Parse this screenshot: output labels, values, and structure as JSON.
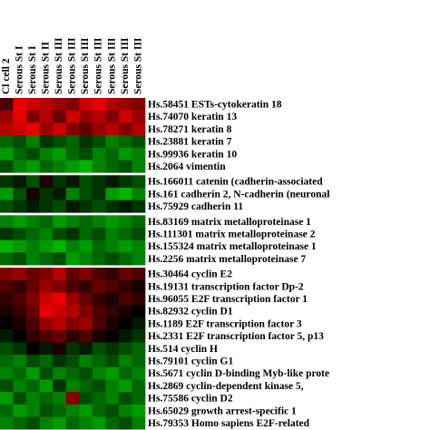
{
  "chart_data": {
    "type": "heatmap",
    "columns": [
      "Cl cell 2",
      "Serous St I",
      "Serous St I",
      "Serous St II",
      "Serous St III",
      "Serous St III",
      "Serous St III",
      "Serous St III",
      "Serous St III",
      "Serous St III",
      "Serous St III"
    ],
    "colors": {
      "positive": "#ff0000",
      "negative": "#00ff00",
      "zero": "#000000"
    },
    "zlim": [
      -1,
      1
    ],
    "row_groups": [
      {
        "rows": [
          "Hs.58451 ESTs-cytokeratin 18",
          "Hs.74070 keratin 13",
          "Hs.78271 keratin 8",
          "Hs.23881 keratin 7",
          "Hs.99936 keratin 10",
          "Hs.2064 vimentin"
        ],
        "values": [
          [
            0.3,
            0.9,
            0.8,
            0.7,
            0.6,
            0.5,
            0.8,
            0.9,
            0.7,
            0.6,
            0.5
          ],
          [
            0.6,
            0.9,
            0.5,
            0.7,
            0.4,
            0.8,
            0.6,
            0.7,
            0.5,
            0.8,
            0.6
          ],
          [
            0.7,
            0.8,
            0.9,
            0.6,
            0.8,
            0.5,
            0.4,
            0.6,
            0.7,
            0.5,
            0.7
          ],
          [
            -0.4,
            -0.3,
            -0.5,
            -0.2,
            -0.3,
            -0.4,
            -0.2,
            -0.3,
            -0.5,
            -0.4,
            -0.3
          ],
          [
            -0.6,
            -0.4,
            -0.3,
            -0.5,
            -0.6,
            -0.4,
            -0.3,
            -0.5,
            -0.4,
            -0.6,
            -0.5
          ],
          [
            -0.3,
            -0.5,
            -0.6,
            -0.4,
            -0.5,
            -0.6,
            -0.7,
            -0.5,
            -0.4,
            -0.3,
            -0.5
          ]
        ]
      },
      {
        "rows": [
          "Hs.166011 catenin (cadherin-associated",
          "Hs.161 cadherin 2, N-cadherin (neuronal",
          "Hs.75929 cadherin 11"
        ],
        "values": [
          [
            -0.2,
            -0.1,
            -0.3,
            0.1,
            -0.2,
            -0.1,
            -0.3,
            -0.2,
            -0.1,
            -0.2,
            -0.3
          ],
          [
            -0.6,
            -0.3,
            0.1,
            -0.2,
            -0.1,
            -0.5,
            -0.3,
            -0.2,
            -0.6,
            -0.7,
            -0.5
          ],
          [
            -0.3,
            -0.2,
            -0.1,
            -0.2,
            -0.3,
            -0.1,
            -0.2,
            -0.3,
            -0.2,
            -0.1,
            -0.2
          ]
        ]
      },
      {
        "rows": [
          "Hs.83169 matrix metalloproteinase 1",
          "Hs.111301 matrix metalloproteinase 2",
          "Hs.155324 matrix metalloproteinase 1",
          "Hs.2256 matrix metalloproteinase 7"
        ],
        "values": [
          [
            -0.5,
            -0.6,
            -0.5,
            -0.4,
            -0.6,
            -0.5,
            -0.4,
            -0.5,
            -0.6,
            -0.5,
            -0.4
          ],
          [
            -0.2,
            -0.3,
            -0.4,
            -0.5,
            -0.3,
            -0.2,
            -0.4,
            -0.3,
            -0.5,
            -0.4,
            -0.3
          ],
          [
            -0.7,
            -0.6,
            -0.5,
            -0.6,
            -0.7,
            -0.5,
            -0.6,
            -0.4,
            -0.5,
            -0.6,
            -0.5
          ],
          [
            -0.4,
            -0.3,
            -0.5,
            -0.4,
            -0.3,
            -0.6,
            -0.5,
            -0.4,
            -0.3,
            -0.4,
            -0.5
          ]
        ]
      },
      {
        "rows": [
          "Hs.30464 cyclin E2",
          "Hs.19131 transcription factor Dp-2",
          "Hs.96055 E2F transcription factor 1",
          "Hs.82932 cyclin D1",
          "Hs.1189 E2F transcription factor 3",
          "Hs.2331 E2F transcription factor 5, p13",
          "Hs.514 cyclin H",
          "Hs.79101 cyclin G1",
          "Hs.5671 cyclin D-binding Myb-like prote",
          "Hs.2869 cyclin-dependent kinase 5,",
          "Hs.75586 cyclin D2",
          "Hs.65029 growth arrest-specific 1",
          "Hs.79353 Homo sapiens E2F-related"
        ],
        "values": [
          [
            0.5,
            0.6,
            0.4,
            0.5,
            0.7,
            0.4,
            0.5,
            0.3,
            0.2,
            0.4,
            0.3
          ],
          [
            0.3,
            0.2,
            0.4,
            0.6,
            0.5,
            0.3,
            0.2,
            0.4,
            0.3,
            0.2,
            0.1
          ],
          [
            0.2,
            0.3,
            0.5,
            0.8,
            0.9,
            0.6,
            0.4,
            0.2,
            0.1,
            0.3,
            0.2
          ],
          [
            0.1,
            0.2,
            0.4,
            0.9,
            0.8,
            0.7,
            0.5,
            0.3,
            0.2,
            0.1,
            0.0
          ],
          [
            0.0,
            0.1,
            0.3,
            0.6,
            0.7,
            0.5,
            0.6,
            0.3,
            0.1,
            0.0,
            -0.1
          ],
          [
            -0.1,
            0.0,
            0.2,
            0.3,
            0.4,
            0.2,
            0.3,
            0.1,
            0.0,
            -0.1,
            -0.2
          ],
          [
            -0.3,
            -0.2,
            0.0,
            -0.1,
            0.1,
            -0.2,
            -0.1,
            -0.3,
            -0.2,
            -0.3,
            -0.4
          ],
          [
            -0.4,
            -0.5,
            -0.3,
            -0.4,
            -0.2,
            -0.3,
            -0.5,
            -0.4,
            -0.3,
            -0.5,
            -0.4
          ],
          [
            -0.5,
            -0.4,
            -0.6,
            -0.3,
            -0.5,
            -0.4,
            -0.3,
            -0.5,
            -0.6,
            -0.4,
            -0.5
          ],
          [
            -0.3,
            -0.5,
            -0.4,
            -0.6,
            -0.2,
            -0.5,
            -0.4,
            -0.3,
            -0.5,
            -0.6,
            -0.4
          ],
          [
            -0.6,
            -0.3,
            -0.5,
            -0.4,
            -0.5,
            0.5,
            -0.3,
            -0.4,
            -0.5,
            -0.3,
            -0.4
          ],
          [
            -0.4,
            -0.6,
            -0.5,
            -0.3,
            -0.4,
            -0.5,
            -0.6,
            -0.4,
            -0.3,
            -0.5,
            -0.6
          ],
          [
            -0.5,
            -0.4,
            -0.3,
            -0.5,
            -0.6,
            -0.4,
            -0.5,
            -0.6,
            -0.4,
            -0.3,
            -0.5
          ]
        ]
      }
    ]
  }
}
